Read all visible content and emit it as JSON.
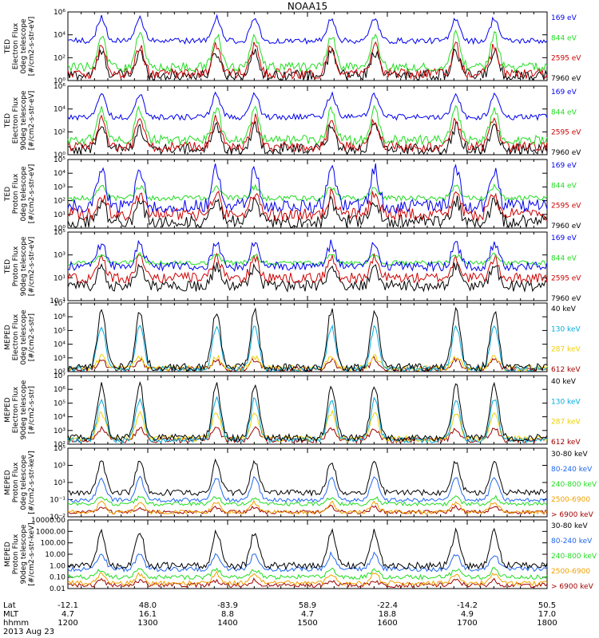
{
  "title": "NOAA15",
  "date_label": "2013 Aug 23",
  "footer": {
    "row_labels": [
      "Lat",
      "MLT",
      "hhmm"
    ],
    "columns": [
      {
        "lat": "-12.1",
        "mlt": "4.7",
        "hhmm": "1200"
      },
      {
        "lat": "48.0",
        "mlt": "16.1",
        "hhmm": "1300"
      },
      {
        "lat": "-83.9",
        "mlt": "8.8",
        "hhmm": "1400"
      },
      {
        "lat": "58.9",
        "mlt": "4.7",
        "hhmm": "1500"
      },
      {
        "lat": "-22.4",
        "mlt": "18.8",
        "hhmm": "1600"
      },
      {
        "lat": "-14.2",
        "mlt": "4.9",
        "hhmm": "1700"
      },
      {
        "lat": "50.5",
        "mlt": "17.0",
        "hhmm": "1800"
      }
    ]
  },
  "colors": {
    "black": "#000000",
    "red": "#cc0000",
    "green": "#22dd22",
    "blue": "#0000ee",
    "dkred": "#a00000",
    "yellow": "#f0d000",
    "cyan": "#00aadd",
    "orange": "#f0a000",
    "mblue": "#2266ee"
  },
  "chart_data": [
    {
      "type": "line",
      "panel": "TED Electron Flux 0deg telescope",
      "ylabel": [
        "TED",
        "Electron Flux",
        "0deg telescope",
        "[#/cm2-s-str-eV]"
      ],
      "yscale": "log",
      "ylim": [
        1,
        1000000
      ],
      "yticks": [
        "10⁰",
        "10²",
        "10⁴",
        "10⁶"
      ],
      "x_hours": [
        12,
        18
      ],
      "series": [
        {
          "name": "7960 eV",
          "color": "#000000",
          "base": 3,
          "peak": 300,
          "noise": 0.5
        },
        {
          "name": "2595 eV",
          "color": "#cc0000",
          "base": 4,
          "peak": 1000,
          "noise": 0.45
        },
        {
          "name": "844 eV",
          "color": "#22dd22",
          "base": 15,
          "peak": 10000,
          "noise": 0.4
        },
        {
          "name": "169 eV",
          "color": "#0000ee",
          "base": 3000,
          "peak": 300000,
          "noise": 0.25
        }
      ]
    },
    {
      "type": "line",
      "panel": "TED Electron Flux 90deg telescope",
      "ylabel": [
        "TED",
        "Electron Flux",
        "90deg telescope",
        "[#/cm2-s-str-eV]"
      ],
      "yscale": "log",
      "ylim": [
        1,
        1000000
      ],
      "yticks": [
        "10⁰",
        "10²",
        "10⁴",
        "10⁶"
      ],
      "x_hours": [
        12,
        18
      ],
      "series": [
        {
          "name": "7960 eV",
          "color": "#000000",
          "base": 3,
          "peak": 300,
          "noise": 0.5
        },
        {
          "name": "2595 eV",
          "color": "#cc0000",
          "base": 5,
          "peak": 1500,
          "noise": 0.45
        },
        {
          "name": "844 eV",
          "color": "#22dd22",
          "base": 20,
          "peak": 10000,
          "noise": 0.4
        },
        {
          "name": "169 eV",
          "color": "#0000ee",
          "base": 2000,
          "peak": 200000,
          "noise": 0.25
        }
      ]
    },
    {
      "type": "line",
      "panel": "TED Proton Flux 0deg telescope",
      "ylabel": [
        "TED",
        "Proton Flux",
        "0deg telescope",
        "[#/cm2-s-str-eV]"
      ],
      "yscale": "log",
      "ylim": [
        1,
        100000
      ],
      "yticks": [
        "10⁰",
        "10¹",
        "10²",
        "10³",
        "10⁴",
        "10⁵"
      ],
      "x_hours": [
        12,
        18
      ],
      "series": [
        {
          "name": "7960 eV",
          "color": "#000000",
          "base": 3,
          "peak": 100,
          "noise": 0.5
        },
        {
          "name": "2595 eV",
          "color": "#cc0000",
          "base": 10,
          "peak": 300,
          "noise": 0.45
        },
        {
          "name": "844 eV",
          "color": "#22dd22",
          "base": 150,
          "peak": 1000,
          "noise": 0.2
        },
        {
          "name": "169 eV",
          "color": "#0000ee",
          "base": 40,
          "peak": 20000,
          "noise": 0.5
        }
      ]
    },
    {
      "type": "line",
      "panel": "TED Proton Flux 90deg telescope",
      "ylabel": [
        "TED",
        "Proton Flux",
        "90deg telescope",
        "[#/cm2-s-str-eV]"
      ],
      "yscale": "log",
      "ylim": [
        0.1,
        100000
      ],
      "yticks": [
        "10⁻¹",
        "10¹",
        "10³",
        "10⁵"
      ],
      "x_hours": [
        12,
        18
      ],
      "series": [
        {
          "name": "7960 eV",
          "color": "#000000",
          "base": 2,
          "peak": 100,
          "noise": 0.5
        },
        {
          "name": "2595 eV",
          "color": "#cc0000",
          "base": 10,
          "peak": 500,
          "noise": 0.45
        },
        {
          "name": "844 eV",
          "color": "#22dd22",
          "base": 200,
          "peak": 1000,
          "noise": 0.2
        },
        {
          "name": "169 eV",
          "color": "#0000ee",
          "base": 100,
          "peak": 10000,
          "noise": 0.4
        }
      ]
    },
    {
      "type": "line",
      "panel": "MEPED Electron Flux 0deg telescope",
      "ylabel": [
        "MEPED",
        "Electron Flux",
        "0deg telescope",
        "[#/cm2-s-str]"
      ],
      "yscale": "log",
      "ylim": [
        100,
        10000000
      ],
      "yticks": [
        "10²",
        "10³",
        "10⁴",
        "10⁵",
        "10⁶",
        "10⁷"
      ],
      "x_hours": [
        12,
        18
      ],
      "series": [
        {
          "name": "612 keV",
          "color": "#a00000",
          "base": 150,
          "peak": 800,
          "noise": 0.2
        },
        {
          "name": "287 keV",
          "color": "#f0d000",
          "base": 180,
          "peak": 1200,
          "noise": 0.2
        },
        {
          "name": "130 keV",
          "color": "#00aadd",
          "base": 160,
          "peak": 200000,
          "noise": 0.2
        },
        {
          "name": "40 keV",
          "color": "#000000",
          "base": 200,
          "peak": 3000000,
          "noise": 0.3
        }
      ]
    },
    {
      "type": "line",
      "panel": "MEPED Electron Flux 90deg telescope",
      "ylabel": [
        "MEPED",
        "Electron Flux",
        "90deg telescope",
        "[#/cm2-s-str]"
      ],
      "yscale": "log",
      "ylim": [
        100,
        10000000
      ],
      "yticks": [
        "10²",
        "10³",
        "10⁴",
        "10⁵",
        "10⁶",
        "10⁷"
      ],
      "x_hours": [
        12,
        18
      ],
      "series": [
        {
          "name": "612 keV",
          "color": "#a00000",
          "base": 200,
          "peak": 1500,
          "noise": 0.2
        },
        {
          "name": "287 keV",
          "color": "#f0d000",
          "base": 250,
          "peak": 20000,
          "noise": 0.2
        },
        {
          "name": "130 keV",
          "color": "#00aadd",
          "base": 200,
          "peak": 200000,
          "noise": 0.2
        },
        {
          "name": "40 keV",
          "color": "#000000",
          "base": 300,
          "peak": 2000000,
          "noise": 0.25
        }
      ]
    },
    {
      "type": "line",
      "panel": "MEPED Proton Flux 0deg telescope",
      "ylabel": [
        "MEPED",
        "Proton Flux",
        "0deg telescope",
        "[#/cm2-s-str-keV]"
      ],
      "yscale": "log",
      "ylim": [
        0.01,
        100000
      ],
      "yticks": [
        "10⁻²",
        "10⁻¹",
        "10¹",
        "10³",
        "10⁵"
      ],
      "x_hours": [
        12,
        18
      ],
      "series": [
        {
          "name": "> 6900 keV",
          "color": "#a00000",
          "base": 0.03,
          "peak": 0.1,
          "noise": 0.2
        },
        {
          "name": "2500-6900",
          "color": "#f0a000",
          "base": 0.03,
          "peak": 0.3,
          "noise": 0.2
        },
        {
          "name": "240-800 keV",
          "color": "#22dd22",
          "base": 0.2,
          "peak": 1,
          "noise": 0.2
        },
        {
          "name": "80-240 keV",
          "color": "#2266ee",
          "base": 0.5,
          "peak": 100,
          "noise": 0.2
        },
        {
          "name": "30-80 keV",
          "color": "#000000",
          "base": 3,
          "peak": 5000,
          "noise": 0.3
        }
      ]
    },
    {
      "type": "line",
      "panel": "MEPED Proton Flux 90deg telescope",
      "ylabel": [
        "MEPED",
        "Proton Flux",
        "90deg telescope",
        "[#/cm2-s-str-keV]"
      ],
      "yscale": "log",
      "ylim": [
        0.01,
        10000
      ],
      "yticks": [
        "0.01",
        "0.10",
        "1.00",
        "10.00",
        "100.00",
        "1000.00",
        "10000.00"
      ],
      "x_hours": [
        12,
        18
      ],
      "series": [
        {
          "name": "> 6900 keV",
          "color": "#a00000",
          "base": 0.02,
          "peak": 0.05,
          "noise": 0.2
        },
        {
          "name": "2500-6900",
          "color": "#f0a000",
          "base": 0.03,
          "peak": 0.2,
          "noise": 0.2
        },
        {
          "name": "240-800 keV",
          "color": "#22dd22",
          "base": 0.1,
          "peak": 0.5,
          "noise": 0.2
        },
        {
          "name": "80-240 keV",
          "color": "#2266ee",
          "base": 0.5,
          "peak": 10,
          "noise": 0.2
        },
        {
          "name": "30-80 keV",
          "color": "#000000",
          "base": 1,
          "peak": 1000,
          "noise": 0.3
        }
      ]
    }
  ]
}
